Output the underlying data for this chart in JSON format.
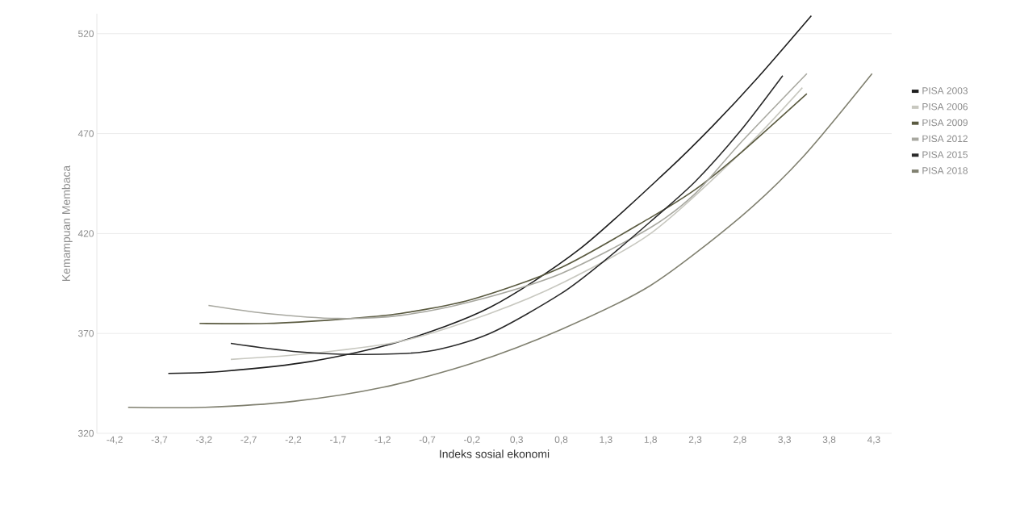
{
  "chart_data": {
    "type": "line",
    "xlabel": "Indeks sosial ekonomi",
    "ylabel": "Kemampuan Membaca",
    "xlim": [
      -4.4,
      4.5
    ],
    "ylim": [
      320,
      530
    ],
    "xticks": [
      {
        "value": -4.2,
        "label": "-4,2"
      },
      {
        "value": -3.7,
        "label": "-3,7"
      },
      {
        "value": -3.2,
        "label": "-3,2"
      },
      {
        "value": -2.7,
        "label": "-2,7"
      },
      {
        "value": -2.2,
        "label": "-2,2"
      },
      {
        "value": -1.7,
        "label": "-1,7"
      },
      {
        "value": -1.2,
        "label": "-1,2"
      },
      {
        "value": -0.7,
        "label": "-0,7"
      },
      {
        "value": -0.2,
        "label": "-0,2"
      },
      {
        "value": 0.3,
        "label": "0,3"
      },
      {
        "value": 0.8,
        "label": "0,8"
      },
      {
        "value": 1.3,
        "label": "1,3"
      },
      {
        "value": 1.8,
        "label": "1,8"
      },
      {
        "value": 2.3,
        "label": "2,3"
      },
      {
        "value": 2.8,
        "label": "2,8"
      },
      {
        "value": 3.3,
        "label": "3,3"
      },
      {
        "value": 3.8,
        "label": "3,8"
      },
      {
        "value": 4.3,
        "label": "4,3"
      }
    ],
    "yticks": [
      320,
      370,
      420,
      470,
      520
    ],
    "grid": "y",
    "legend": "right",
    "marker": "none",
    "line_style": "solid",
    "series": [
      {
        "name": "PISA 2003",
        "color": "#1e1e1e",
        "x": [
          -3.6,
          -3.0,
          -2.0,
          -1.0,
          0.0,
          1.0,
          2.0,
          2.5,
          3.0,
          3.6
        ],
        "values": [
          350,
          351,
          356,
          366,
          383,
          412,
          452,
          474,
          498,
          529
        ]
      },
      {
        "name": "PISA 2006",
        "color": "#c8c8c0",
        "x": [
          -2.9,
          -2.0,
          -1.0,
          0.0,
          0.8,
          1.8,
          2.8,
          3.5
        ],
        "values": [
          357,
          360,
          366,
          380,
          395,
          420,
          460,
          493
        ]
      },
      {
        "name": "PISA 2009",
        "color": "#5a5a40",
        "x": [
          -3.25,
          -2.5,
          -1.7,
          -1.0,
          -0.2,
          0.8,
          1.8,
          2.3,
          2.8,
          3.55
        ],
        "values": [
          375,
          375,
          377,
          380,
          387,
          403,
          428,
          442,
          460,
          490
        ]
      },
      {
        "name": "PISA 2012",
        "color": "#a8a8a0",
        "x": [
          -3.15,
          -2.5,
          -1.7,
          -1.0,
          -0.2,
          0.8,
          1.8,
          2.3,
          2.8,
          3.55
        ],
        "values": [
          384,
          380,
          377.5,
          379,
          386,
          400,
          423,
          440,
          465,
          500
        ]
      },
      {
        "name": "PISA 2015",
        "color": "#2a2a2a",
        "x": [
          -2.9,
          -2.2,
          -1.5,
          -0.7,
          0.0,
          0.8,
          1.3,
          1.8,
          2.3,
          2.8,
          3.28
        ],
        "values": [
          365,
          361,
          359.5,
          361,
          370,
          390,
          407,
          426,
          446,
          471,
          499
        ]
      },
      {
        "name": "PISA 2018",
        "color": "#808070",
        "x": [
          -4.05,
          -3.2,
          -2.2,
          -1.2,
          -0.2,
          0.8,
          1.8,
          2.8,
          3.5,
          4.28
        ],
        "values": [
          333,
          333,
          336,
          343,
          355,
          372,
          394,
          428,
          458,
          500
        ]
      }
    ]
  }
}
